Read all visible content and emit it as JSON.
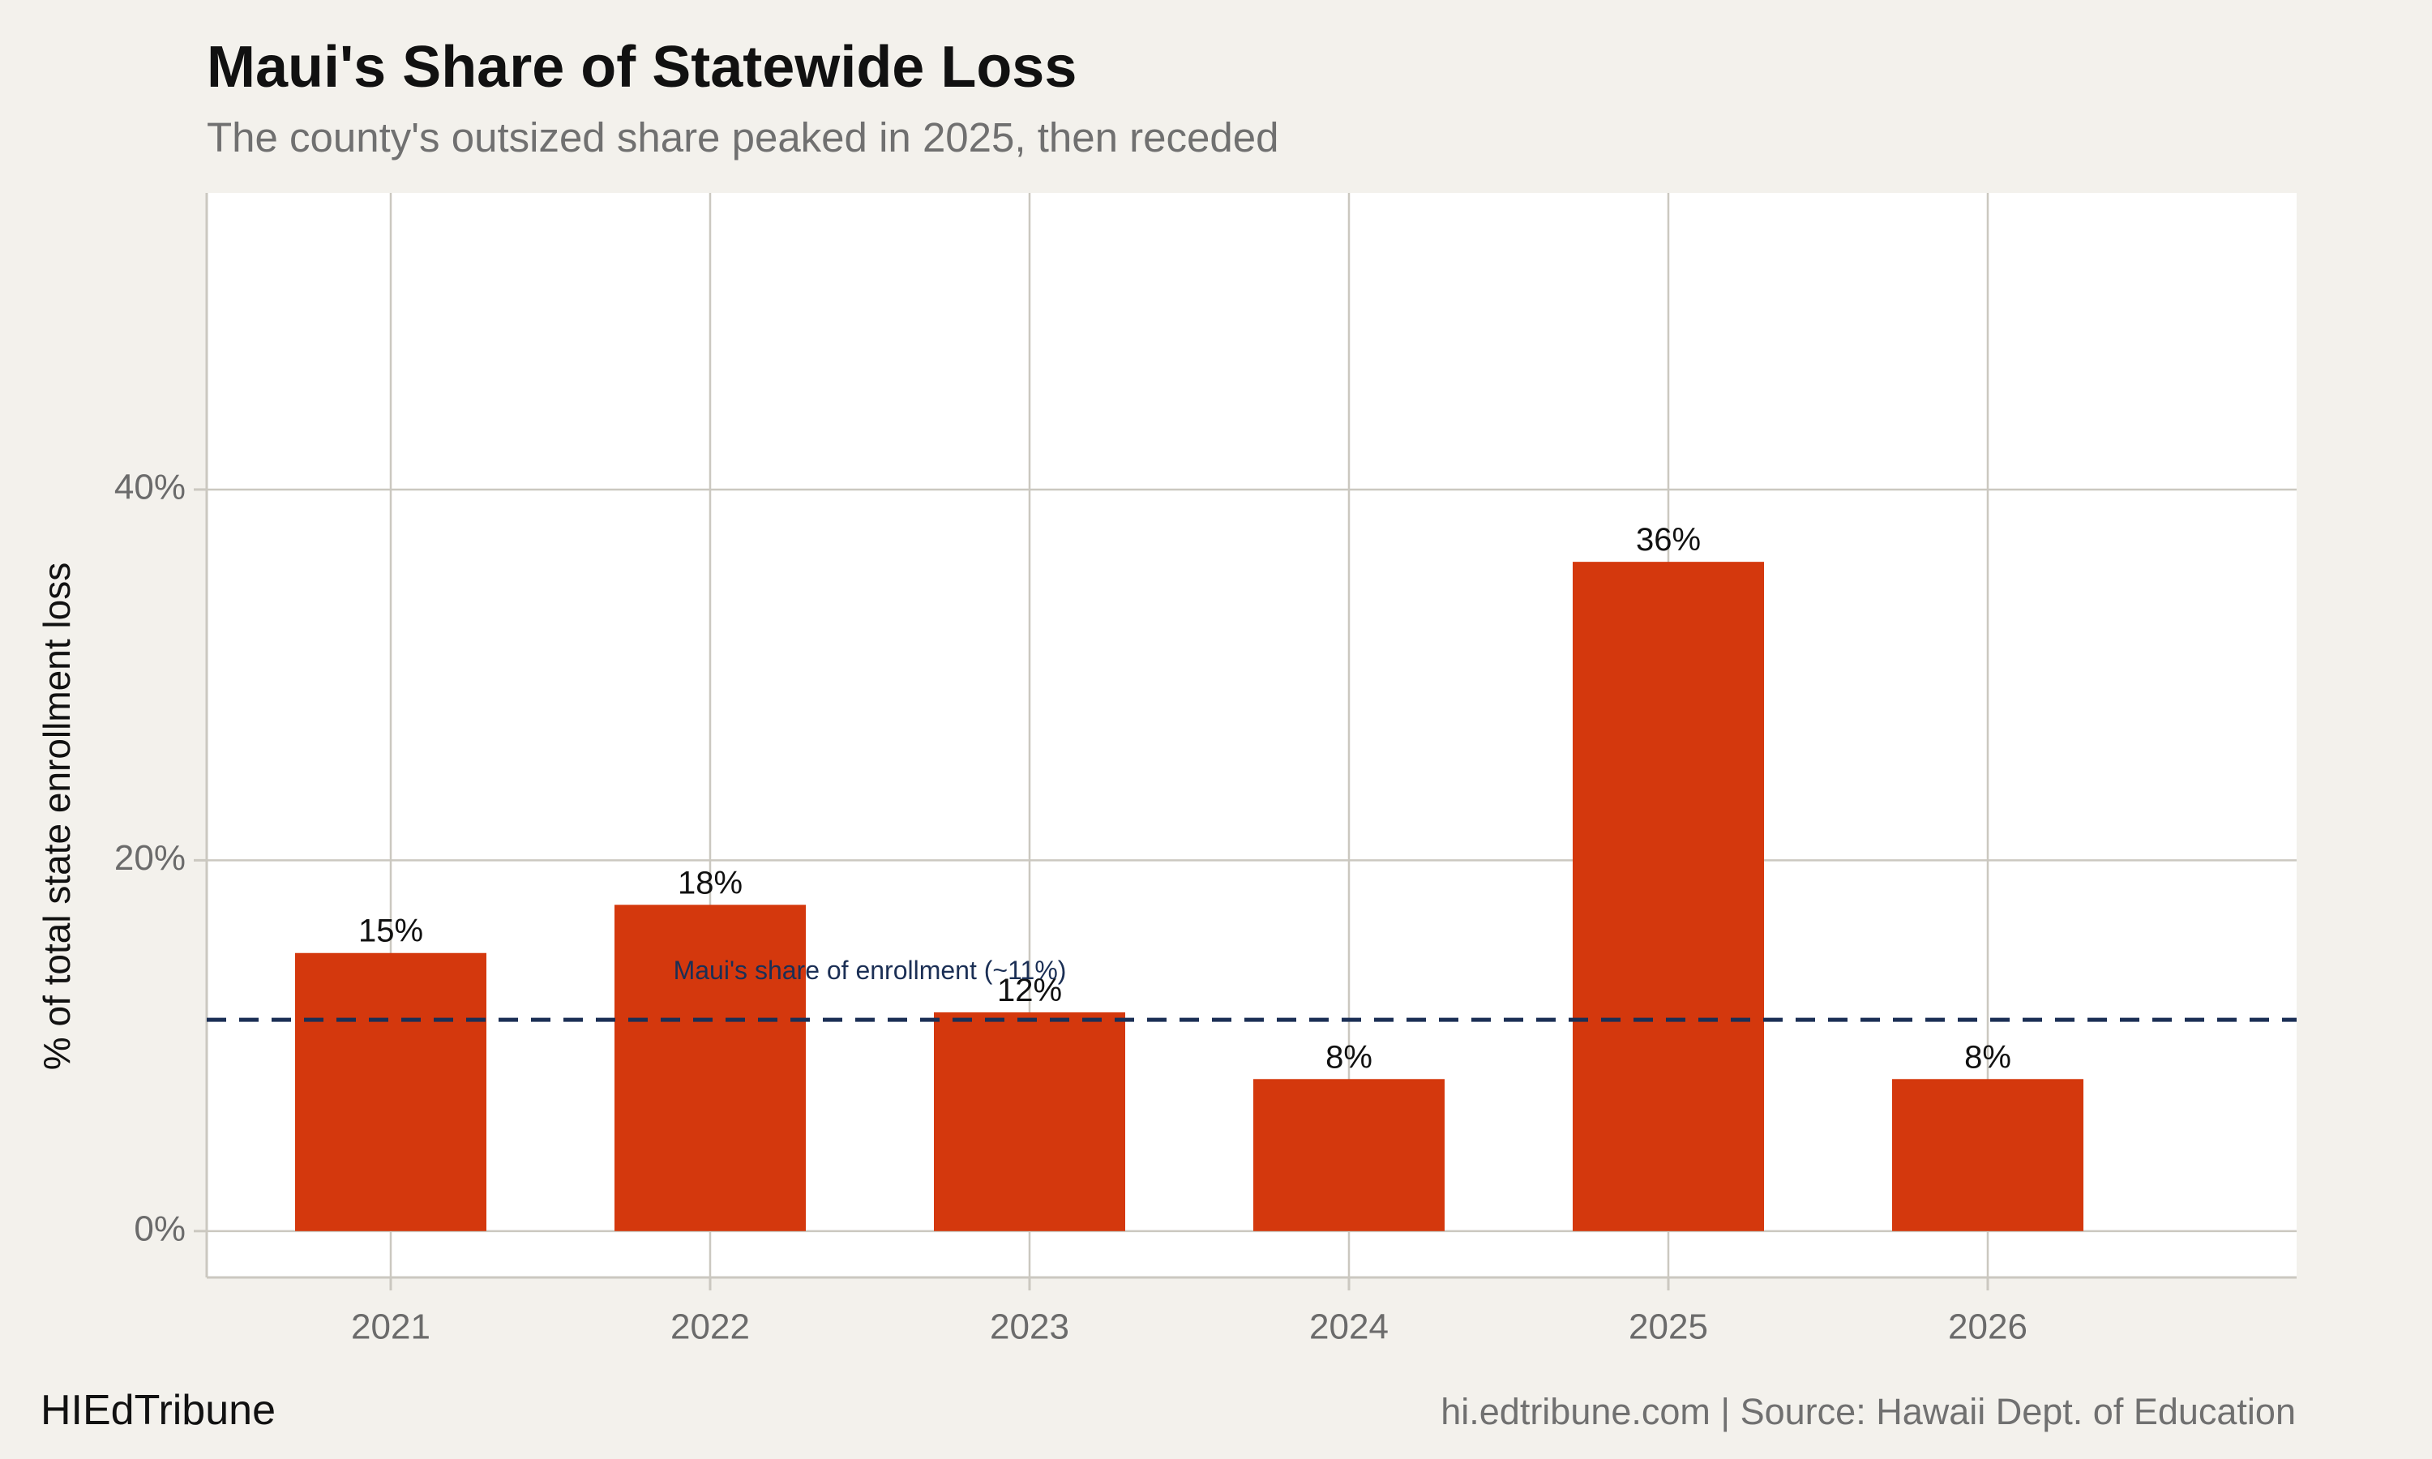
{
  "header": {
    "title": "Maui's Share of Statewide Loss",
    "subtitle": "The county's outsized share peaked in 2025, then receded"
  },
  "footer": {
    "brand": "HIEdTribune",
    "source": "hi.edtribune.com | Source: Hawaii Dept. of Education"
  },
  "colors": {
    "bar": "#d4380d",
    "reference_line": "#1b2f55",
    "grid": "#cbc8c0",
    "panel": "#ffffff",
    "background": "#f3f1ec"
  },
  "chart_data": {
    "type": "bar",
    "title": "Maui's Share of Statewide Loss",
    "subtitle": "The county's outsized share peaked in 2025, then receded",
    "xlabel": "",
    "ylabel": "% of total state enrollment loss",
    "categories": [
      "2021",
      "2022",
      "2023",
      "2024",
      "2025",
      "2026"
    ],
    "values": [
      15,
      17.6,
      11.8,
      8.2,
      36.1,
      8.2
    ],
    "data_labels": [
      "15%",
      "18%",
      "12%",
      "8%",
      "36%",
      "8%"
    ],
    "ylim": [
      -2.5,
      56
    ],
    "yticks": [
      0,
      20,
      40
    ],
    "ytick_labels": [
      "0%",
      "20%",
      "40%"
    ],
    "grid": true,
    "reference_line": {
      "value": 11.4,
      "label": "Maui's share of enrollment (~11%)",
      "style": "dashed"
    }
  }
}
